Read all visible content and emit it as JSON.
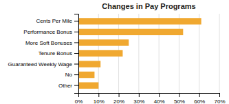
{
  "chart_data": {
    "type": "bar",
    "orientation": "horizontal",
    "title": "Changes in Pay Programs",
    "categories": [
      "Other",
      "No",
      "Guaranteed Weekly Wage",
      "Tenure Bonus",
      "More Soft Bonuses",
      "Performance Bonus",
      "Cents Per Mile"
    ],
    "values": [
      10,
      8,
      11,
      22,
      25,
      52,
      61
    ],
    "color": "#F0A830",
    "xlim": [
      0,
      70
    ],
    "xticks": [
      {
        "value": 0,
        "label": "0%"
      },
      {
        "value": 10,
        "label": "10%"
      },
      {
        "value": 20,
        "label": "20%"
      },
      {
        "value": 30,
        "label": "30%"
      },
      {
        "value": 40,
        "label": "40%"
      },
      {
        "value": 50,
        "label": "50%"
      },
      {
        "value": 60,
        "label": "60%"
      },
      {
        "value": 70,
        "label": "70%"
      }
    ],
    "grid": true
  }
}
